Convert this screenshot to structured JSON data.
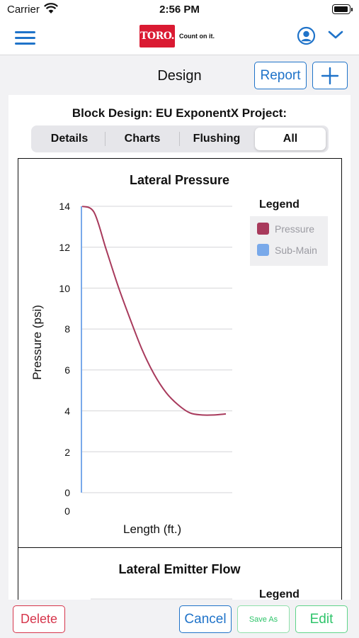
{
  "status": {
    "carrier": "Carrier",
    "time": "2:56 PM"
  },
  "nav": {
    "logo_text": "TORO.",
    "tagline": "Count on it."
  },
  "header": {
    "title": "Design",
    "report_label": "Report"
  },
  "block_title": "Block Design: EU ExponentX  Project:",
  "tabs": [
    {
      "label": "Details",
      "selected": false
    },
    {
      "label": "Charts",
      "selected": false
    },
    {
      "label": "Flushing",
      "selected": false
    },
    {
      "label": "All",
      "selected": true
    }
  ],
  "chart_data": [
    {
      "type": "line",
      "title": "Lateral Pressure",
      "xlabel": "Length (ft.)",
      "ylabel": "Pressure (psi)",
      "ylim": [
        0,
        14
      ],
      "yticks": [
        "0",
        "2",
        "4",
        "6",
        "8",
        "10",
        "12",
        "14"
      ],
      "xticks": [
        "0"
      ],
      "grid": true,
      "legend": {
        "title": "Legend",
        "placement": "right"
      },
      "series": [
        {
          "name": "Pressure",
          "color": "#a83a5c",
          "values": [
            14,
            13.7,
            11.9,
            10.1,
            8.5,
            7.0,
            5.8,
            4.9,
            4.3,
            3.9,
            3.8,
            3.8,
            3.85
          ]
        },
        {
          "name": "Sub-Main",
          "color": "#79a9ea",
          "values": [
            0,
            14
          ]
        }
      ]
    },
    {
      "type": "line",
      "title": "Lateral Emitter Flow",
      "legend": {
        "title": "Legend",
        "placement": "right"
      }
    }
  ],
  "footer": {
    "delete_label": "Delete",
    "cancel_label": "Cancel",
    "saveas_label": "Save As",
    "edit_label": "Edit"
  },
  "colors": {
    "accent": "#1f73c9",
    "danger": "#d6354b",
    "success": "#2ec46a",
    "brand": "#da1a32"
  }
}
